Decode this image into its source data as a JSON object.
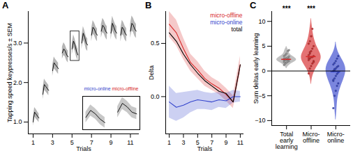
{
  "chart_data": [
    {
      "type": "line",
      "title": "A",
      "x_label": "Trials",
      "y_label": "Tapping speed keypresses/s ± SEM",
      "x": [
        1,
        1.15,
        1.3,
        1.45,
        1.6,
        1.8,
        2,
        2.15,
        2.3,
        2.45,
        2.6,
        2.8,
        3,
        3.15,
        3.3,
        3.45,
        3.6,
        3.8,
        4,
        4.15,
        4.3,
        4.45,
        4.6,
        4.8,
        5,
        5.15,
        5.3,
        5.45,
        5.6,
        5.8,
        6,
        6.15,
        6.3,
        6.45,
        6.6,
        6.8,
        7,
        7.15,
        7.3,
        7.45,
        7.6,
        7.8,
        8,
        8.15,
        8.3,
        8.45,
        8.6,
        8.8,
        9,
        9.15,
        9.3,
        9.45,
        9.6,
        9.8,
        10,
        10.15,
        10.3,
        10.45,
        10.6,
        10.8,
        11,
        11.15,
        11.3,
        11.45,
        11.6
      ],
      "values": [
        1.0,
        1.25,
        1.2,
        1.15,
        1.1,
        null,
        1.7,
        1.95,
        1.9,
        1.85,
        1.8,
        null,
        2.3,
        2.5,
        2.45,
        2.4,
        2.35,
        null,
        2.75,
        2.85,
        2.8,
        2.7,
        2.65,
        null,
        2.85,
        3.05,
        2.95,
        2.8,
        2.7,
        null,
        3.0,
        3.25,
        3.15,
        3.0,
        2.95,
        null,
        3.2,
        3.4,
        3.35,
        3.25,
        3.2,
        null,
        3.3,
        3.45,
        3.4,
        3.3,
        3.25,
        null,
        3.25,
        3.5,
        3.4,
        3.3,
        3.25,
        null,
        3.2,
        3.4,
        3.35,
        3.25,
        3.2,
        null,
        3.3,
        3.5,
        3.45,
        3.35,
        3.3
      ],
      "sem": [
        0.1,
        0.12,
        0.12,
        0.11,
        0.11,
        null,
        0.13,
        0.14,
        0.13,
        0.13,
        0.13,
        null,
        0.14,
        0.15,
        0.14,
        0.14,
        0.14,
        null,
        0.15,
        0.16,
        0.15,
        0.15,
        0.15,
        null,
        0.15,
        0.16,
        0.15,
        0.15,
        0.15,
        null,
        0.16,
        0.17,
        0.16,
        0.16,
        0.16,
        null,
        0.16,
        0.17,
        0.16,
        0.16,
        0.16,
        null,
        0.17,
        0.18,
        0.17,
        0.17,
        0.17,
        null,
        0.17,
        0.18,
        0.17,
        0.17,
        0.17,
        null,
        0.17,
        0.18,
        0.17,
        0.17,
        0.17,
        null,
        0.18,
        0.19,
        0.18,
        0.18,
        0.18
      ],
      "color": "#000000",
      "xlim": [
        0.5,
        11.9
      ],
      "xticks": [
        1,
        3,
        5,
        7,
        9,
        11
      ],
      "ylim": [
        0.7,
        3.8
      ],
      "yticks": [
        1,
        2,
        3
      ],
      "highlight": {
        "x": [
          4.85,
          5.75
        ],
        "y": [
          2.55,
          3.3
        ]
      },
      "inset": {
        "xlim": [
          4.9,
          6.7
        ],
        "ylim": [
          2.5,
          3.45
        ],
        "annotations": [
          {
            "text": "micro-online",
            "color": "#3344cc"
          },
          {
            "text": "micro-offline",
            "color": "#d62728"
          }
        ]
      }
    },
    {
      "type": "line",
      "title": "B",
      "x_label": "Trials",
      "y_label": "Delta",
      "x": [
        1,
        2,
        3,
        4,
        5,
        6,
        7,
        8,
        9,
        10,
        11
      ],
      "series": [
        {
          "name": "micro-offline",
          "color": "#d62728",
          "values": [
            0.68,
            0.6,
            0.45,
            0.32,
            0.25,
            0.17,
            0.12,
            0.08,
            0.02,
            -0.05,
            0.3
          ],
          "sem": [
            0.12,
            0.12,
            0.1,
            0.08,
            0.08,
            0.07,
            0.06,
            0.06,
            0.06,
            0.06,
            0.08
          ]
        },
        {
          "name": "micro-online",
          "color": "#3344cc",
          "values": [
            -0.05,
            -0.1,
            -0.08,
            -0.05,
            -0.03,
            -0.04,
            -0.05,
            -0.03,
            -0.04,
            0.0,
            0.0
          ],
          "sem": [
            0.15,
            0.13,
            0.12,
            0.1,
            0.09,
            0.08,
            0.08,
            0.07,
            0.07,
            0.06,
            0.05
          ]
        },
        {
          "name": "total",
          "color": "#000000",
          "values": [
            0.6,
            0.52,
            0.4,
            0.3,
            0.22,
            0.15,
            0.1,
            0.05,
            0.03,
            -0.05,
            0.3
          ]
        }
      ],
      "legend": "top-right",
      "xlim": [
        0.5,
        11.5
      ],
      "xticks": [
        1,
        3,
        5,
        7,
        9,
        11
      ],
      "ylim": [
        -0.35,
        0.8
      ],
      "yticks": [
        0,
        0.5
      ]
    },
    {
      "type": "violin",
      "title": "C",
      "y_label": "Sum deltas early learning",
      "categories": [
        "Total early learning",
        "Micro-offline",
        "Micro-online"
      ],
      "colors": [
        "#9e9e9e",
        "#d62728",
        "#3344cc"
      ],
      "values": [
        [
          1.2,
          1.5,
          1.7,
          1.9,
          2.0,
          2.1,
          2.2,
          2.3,
          2.3,
          2.4,
          2.5,
          2.5,
          2.6,
          2.7,
          2.9,
          3.0,
          3.2,
          3.5,
          4.0,
          4.2,
          1.8,
          2.2
        ],
        [
          -0.5,
          0.5,
          1.0,
          1.5,
          2.0,
          2.2,
          2.5,
          2.8,
          2.8,
          3.0,
          3.2,
          3.5,
          4.0,
          4.5,
          5.0,
          5.5,
          6.0,
          7.0,
          8.5,
          1.8,
          2.6,
          3.8
        ],
        [
          -7.5,
          -5,
          -4,
          -3,
          -2.5,
          -2,
          -1.5,
          -1,
          -0.6,
          -0.3,
          0,
          0.2,
          0.5,
          0.8,
          1.0,
          1.3,
          1.6,
          2.0,
          2.5,
          3.0,
          -1.8,
          0.4
        ]
      ],
      "annotations": [
        "***",
        "***",
        null
      ],
      "baseline": 0,
      "xlim": [
        -0.6,
        2.6
      ],
      "ylim": [
        -11,
        12
      ],
      "yticks": [
        -10,
        -5,
        0,
        5,
        10
      ]
    }
  ]
}
